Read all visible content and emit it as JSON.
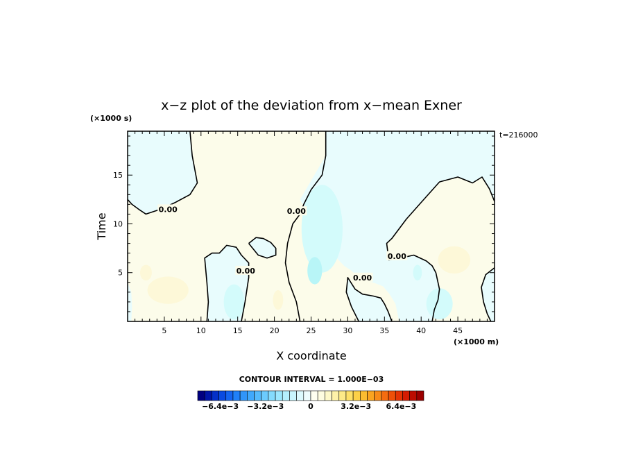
{
  "chart_data": {
    "type": "heatmap",
    "title": "x−z plot of the deviation from x−mean Exner",
    "xlabel": "X coordinate",
    "ylabel": "Time",
    "x_unit": "(×1000 m)",
    "y_unit": "(×1000 s)",
    "time_label": "t=216000",
    "xlim": [
      0,
      50
    ],
    "ylim": [
      0,
      19.5
    ],
    "x_ticks": [
      5,
      10,
      15,
      20,
      25,
      30,
      35,
      40,
      45
    ],
    "y_ticks": [
      5,
      10,
      15
    ],
    "contour_interval_label": "CONTOUR INTERVAL = 1.000E−03",
    "contour_label_text": "0.00",
    "zero_contour_labels": [
      {
        "x": 5.5,
        "y": 11.5
      },
      {
        "x": 23.0,
        "y": 11.3
      },
      {
        "x": 16.1,
        "y": 5.2
      },
      {
        "x": 36.7,
        "y": 6.7
      },
      {
        "x": 32.0,
        "y": 4.5
      }
    ],
    "negative_regions": [
      {
        "name": "upper-left",
        "outline": [
          [
            0,
            19.5
          ],
          [
            8.5,
            19.5
          ],
          [
            8.8,
            17
          ],
          [
            9.5,
            14.2
          ],
          [
            8.5,
            13
          ],
          [
            6.5,
            12.2
          ],
          [
            4.5,
            11.5
          ],
          [
            2.5,
            11
          ],
          [
            1.5,
            11.5
          ],
          [
            0.6,
            12
          ],
          [
            0,
            12.5
          ]
        ]
      },
      {
        "name": "center-band",
        "outline": [
          [
            27,
            19.5
          ],
          [
            50,
            19.5
          ],
          [
            50,
            12.3
          ],
          [
            49.3,
            13.6
          ],
          [
            48.3,
            14.8
          ],
          [
            47,
            14.2
          ],
          [
            45,
            14.8
          ],
          [
            42.5,
            14.3
          ],
          [
            40,
            12.2
          ],
          [
            38,
            10.5
          ],
          [
            36,
            8.5
          ],
          [
            35.3,
            8
          ],
          [
            35.6,
            6.3
          ],
          [
            37.2,
            6.5
          ],
          [
            39,
            6.8
          ],
          [
            40.7,
            6.2
          ],
          [
            41.5,
            5.7
          ],
          [
            42,
            5
          ],
          [
            42.5,
            3.3
          ],
          [
            42.3,
            2.2
          ],
          [
            41.8,
            1.2
          ],
          [
            41.5,
            0
          ],
          [
            37,
            0
          ],
          [
            36.5,
            1.8
          ],
          [
            35.7,
            2.8
          ],
          [
            34.8,
            3.6
          ],
          [
            33.8,
            3.9
          ],
          [
            32.5,
            4.2
          ],
          [
            31.5,
            4.5
          ],
          [
            30.5,
            5.2
          ],
          [
            29.5,
            5.7
          ],
          [
            28.5,
            6.5
          ],
          [
            27.5,
            7.3
          ],
          [
            26.5,
            8.5
          ],
          [
            25.5,
            9
          ],
          [
            24.5,
            11
          ],
          [
            24,
            11.8
          ],
          [
            23.5,
            12.5
          ],
          [
            27,
            17
          ],
          [
            27,
            19.5
          ]
        ]
      },
      {
        "name": "lower-middle",
        "outline": [
          [
            10.8,
            0
          ],
          [
            15.5,
            0
          ],
          [
            16,
            2
          ],
          [
            16.5,
            4.5
          ],
          [
            16.5,
            6
          ],
          [
            15.5,
            6.8
          ],
          [
            14.8,
            7.6
          ],
          [
            13.5,
            7.8
          ],
          [
            12.5,
            7
          ],
          [
            11.5,
            7
          ],
          [
            10.5,
            6.5
          ],
          [
            10.8,
            4
          ],
          [
            11,
            2
          ]
        ]
      },
      {
        "name": "small-blob",
        "outline": [
          [
            16.5,
            8
          ],
          [
            17.5,
            8.6
          ],
          [
            18.5,
            8.5
          ],
          [
            19.5,
            8.1
          ],
          [
            20.2,
            7.5
          ],
          [
            20.2,
            6.8
          ],
          [
            19,
            6.5
          ],
          [
            17.8,
            6.8
          ]
        ]
      },
      {
        "name": "lower-right-lobe",
        "outline": [
          [
            30,
            4.5
          ],
          [
            31,
            3.3
          ],
          [
            32,
            2.8
          ],
          [
            33.5,
            2.6
          ],
          [
            34.5,
            2.4
          ],
          [
            35,
            1.8
          ],
          [
            35.5,
            1
          ],
          [
            36,
            0
          ],
          [
            31.5,
            0
          ],
          [
            30.5,
            1.5
          ],
          [
            29.8,
            3
          ]
        ]
      },
      {
        "name": "right-edge",
        "outline": [
          [
            50,
            0
          ],
          [
            50,
            5.5
          ],
          [
            48.8,
            4.8
          ],
          [
            48.2,
            3.5
          ],
          [
            48.5,
            2
          ],
          [
            49,
            0.8
          ],
          [
            49.5,
            0
          ]
        ]
      },
      {
        "name": "left-edge-strip",
        "outline": [
          [
            0,
            0
          ],
          [
            0.5,
            0
          ],
          [
            0.6,
            1.5
          ],
          [
            0.5,
            3
          ],
          [
            0,
            4
          ]
        ]
      }
    ],
    "zero_contours": [
      [
        [
          8.5,
          19.5
        ],
        [
          8.8,
          17
        ],
        [
          9.5,
          14.2
        ],
        [
          8.5,
          13
        ],
        [
          6.5,
          12.2
        ],
        [
          4.5,
          11.5
        ],
        [
          2.5,
          11
        ],
        [
          1.5,
          11.5
        ],
        [
          0.6,
          12
        ],
        [
          0,
          12.5
        ]
      ],
      [
        [
          27,
          19.5
        ],
        [
          27,
          17
        ],
        [
          26.5,
          15
        ],
        [
          25,
          13.5
        ],
        [
          24,
          12
        ],
        [
          23.5,
          11
        ],
        [
          22.5,
          10
        ],
        [
          21.8,
          8
        ],
        [
          21.5,
          6
        ],
        [
          22,
          4
        ],
        [
          23,
          2
        ],
        [
          23.5,
          0
        ]
      ],
      [
        [
          50,
          12.3
        ],
        [
          49.3,
          13.6
        ],
        [
          48.3,
          14.8
        ],
        [
          47,
          14.2
        ],
        [
          45,
          14.8
        ],
        [
          42.5,
          14.3
        ],
        [
          40,
          12.2
        ],
        [
          38,
          10.5
        ],
        [
          36,
          8.5
        ],
        [
          35.3,
          8
        ],
        [
          35.6,
          6.3
        ],
        [
          37.2,
          6.5
        ],
        [
          39,
          6.8
        ],
        [
          40.7,
          6.2
        ],
        [
          41.5,
          5.7
        ],
        [
          42,
          5
        ],
        [
          42.5,
          3.3
        ],
        [
          42.3,
          2.2
        ],
        [
          41.8,
          1.2
        ],
        [
          41.5,
          0
        ]
      ],
      [
        [
          10.8,
          0
        ],
        [
          11,
          2
        ],
        [
          10.8,
          4
        ],
        [
          10.5,
          6.5
        ],
        [
          11.5,
          7
        ],
        [
          12.5,
          7
        ],
        [
          13.5,
          7.8
        ],
        [
          14.8,
          7.6
        ],
        [
          15.5,
          6.8
        ],
        [
          16.5,
          6
        ],
        [
          16.5,
          4.5
        ],
        [
          16,
          2
        ],
        [
          15.5,
          0
        ]
      ],
      [
        [
          16.5,
          8
        ],
        [
          17.5,
          8.6
        ],
        [
          18.5,
          8.5
        ],
        [
          19.5,
          8.1
        ],
        [
          20.2,
          7.5
        ],
        [
          20.2,
          6.8
        ],
        [
          19,
          6.5
        ],
        [
          17.8,
          6.8
        ],
        [
          16.5,
          8
        ]
      ],
      [
        [
          36,
          0
        ],
        [
          35.5,
          1
        ],
        [
          35,
          1.8
        ],
        [
          34.5,
          2.4
        ],
        [
          33.5,
          2.6
        ],
        [
          32,
          2.8
        ],
        [
          31,
          3.3
        ],
        [
          30,
          4.5
        ],
        [
          29.8,
          3
        ],
        [
          30.5,
          1.5
        ],
        [
          31.5,
          0
        ]
      ],
      [
        [
          50,
          5.5
        ],
        [
          48.8,
          4.8
        ],
        [
          48.2,
          3.5
        ],
        [
          48.5,
          2
        ],
        [
          49,
          0.8
        ],
        [
          49.5,
          0
        ]
      ]
    ],
    "blobs": [
      {
        "x": 26.5,
        "y": 9.5,
        "rx": 2.8,
        "ry": 4.5,
        "color": "#d3fbfb"
      },
      {
        "x": 25.5,
        "y": 5.2,
        "rx": 1.0,
        "ry": 1.4,
        "color": "#b8f5f7"
      },
      {
        "x": 42.5,
        "y": 1.8,
        "rx": 1.8,
        "ry": 1.6,
        "color": "#d3fbfb"
      },
      {
        "x": 39.5,
        "y": 5.0,
        "rx": 0.6,
        "ry": 0.8,
        "color": "#d3fbfb"
      },
      {
        "x": 14.5,
        "y": 2.0,
        "rx": 1.4,
        "ry": 1.8,
        "color": "#d3fbfb"
      },
      {
        "x": 5.5,
        "y": 3.2,
        "rx": 2.8,
        "ry": 1.4,
        "color": "#fdf8d8"
      },
      {
        "x": 2.5,
        "y": 5.0,
        "rx": 0.8,
        "ry": 0.8,
        "color": "#fdf8d8"
      },
      {
        "x": 20.5,
        "y": 2.2,
        "rx": 0.7,
        "ry": 1.0,
        "color": "#fdf8d8"
      },
      {
        "x": 44.5,
        "y": 6.3,
        "rx": 2.2,
        "ry": 1.4,
        "color": "#fdf8d8"
      }
    ],
    "fill_colors": {
      "positive_weak": "#fcfcea",
      "negative_weak": "#e8fcfd",
      "contour": "#000000"
    },
    "colorbar": {
      "tick_labels": [
        {
          "label": "−6.4e−3",
          "value": -6.4
        },
        {
          "label": "−3.2e−3",
          "value": -3.2
        },
        {
          "label": "0",
          "value": 0
        },
        {
          "label": "3.2e−3",
          "value": 3.2
        },
        {
          "label": "6.4e−3",
          "value": 6.4
        }
      ],
      "range": [
        -8,
        8
      ],
      "colors": [
        "#000080",
        "#0015a8",
        "#0530c8",
        "#0a4ae0",
        "#1565f0",
        "#2080f8",
        "#3095fa",
        "#40a8fc",
        "#55bafc",
        "#6ccbfd",
        "#84dbfd",
        "#9ce7fe",
        "#b4effe",
        "#c8f5fe",
        "#dcf9fe",
        "#eefcfe",
        "#fefef0",
        "#fefce0",
        "#fef8c8",
        "#fef2a8",
        "#fdea88",
        "#fde068",
        "#fcd048",
        "#fbbc30",
        "#faa420",
        "#f88a18",
        "#f46c10",
        "#ee5008",
        "#e43404",
        "#d41c02",
        "#bc0c00",
        "#9c0000"
      ]
    }
  }
}
